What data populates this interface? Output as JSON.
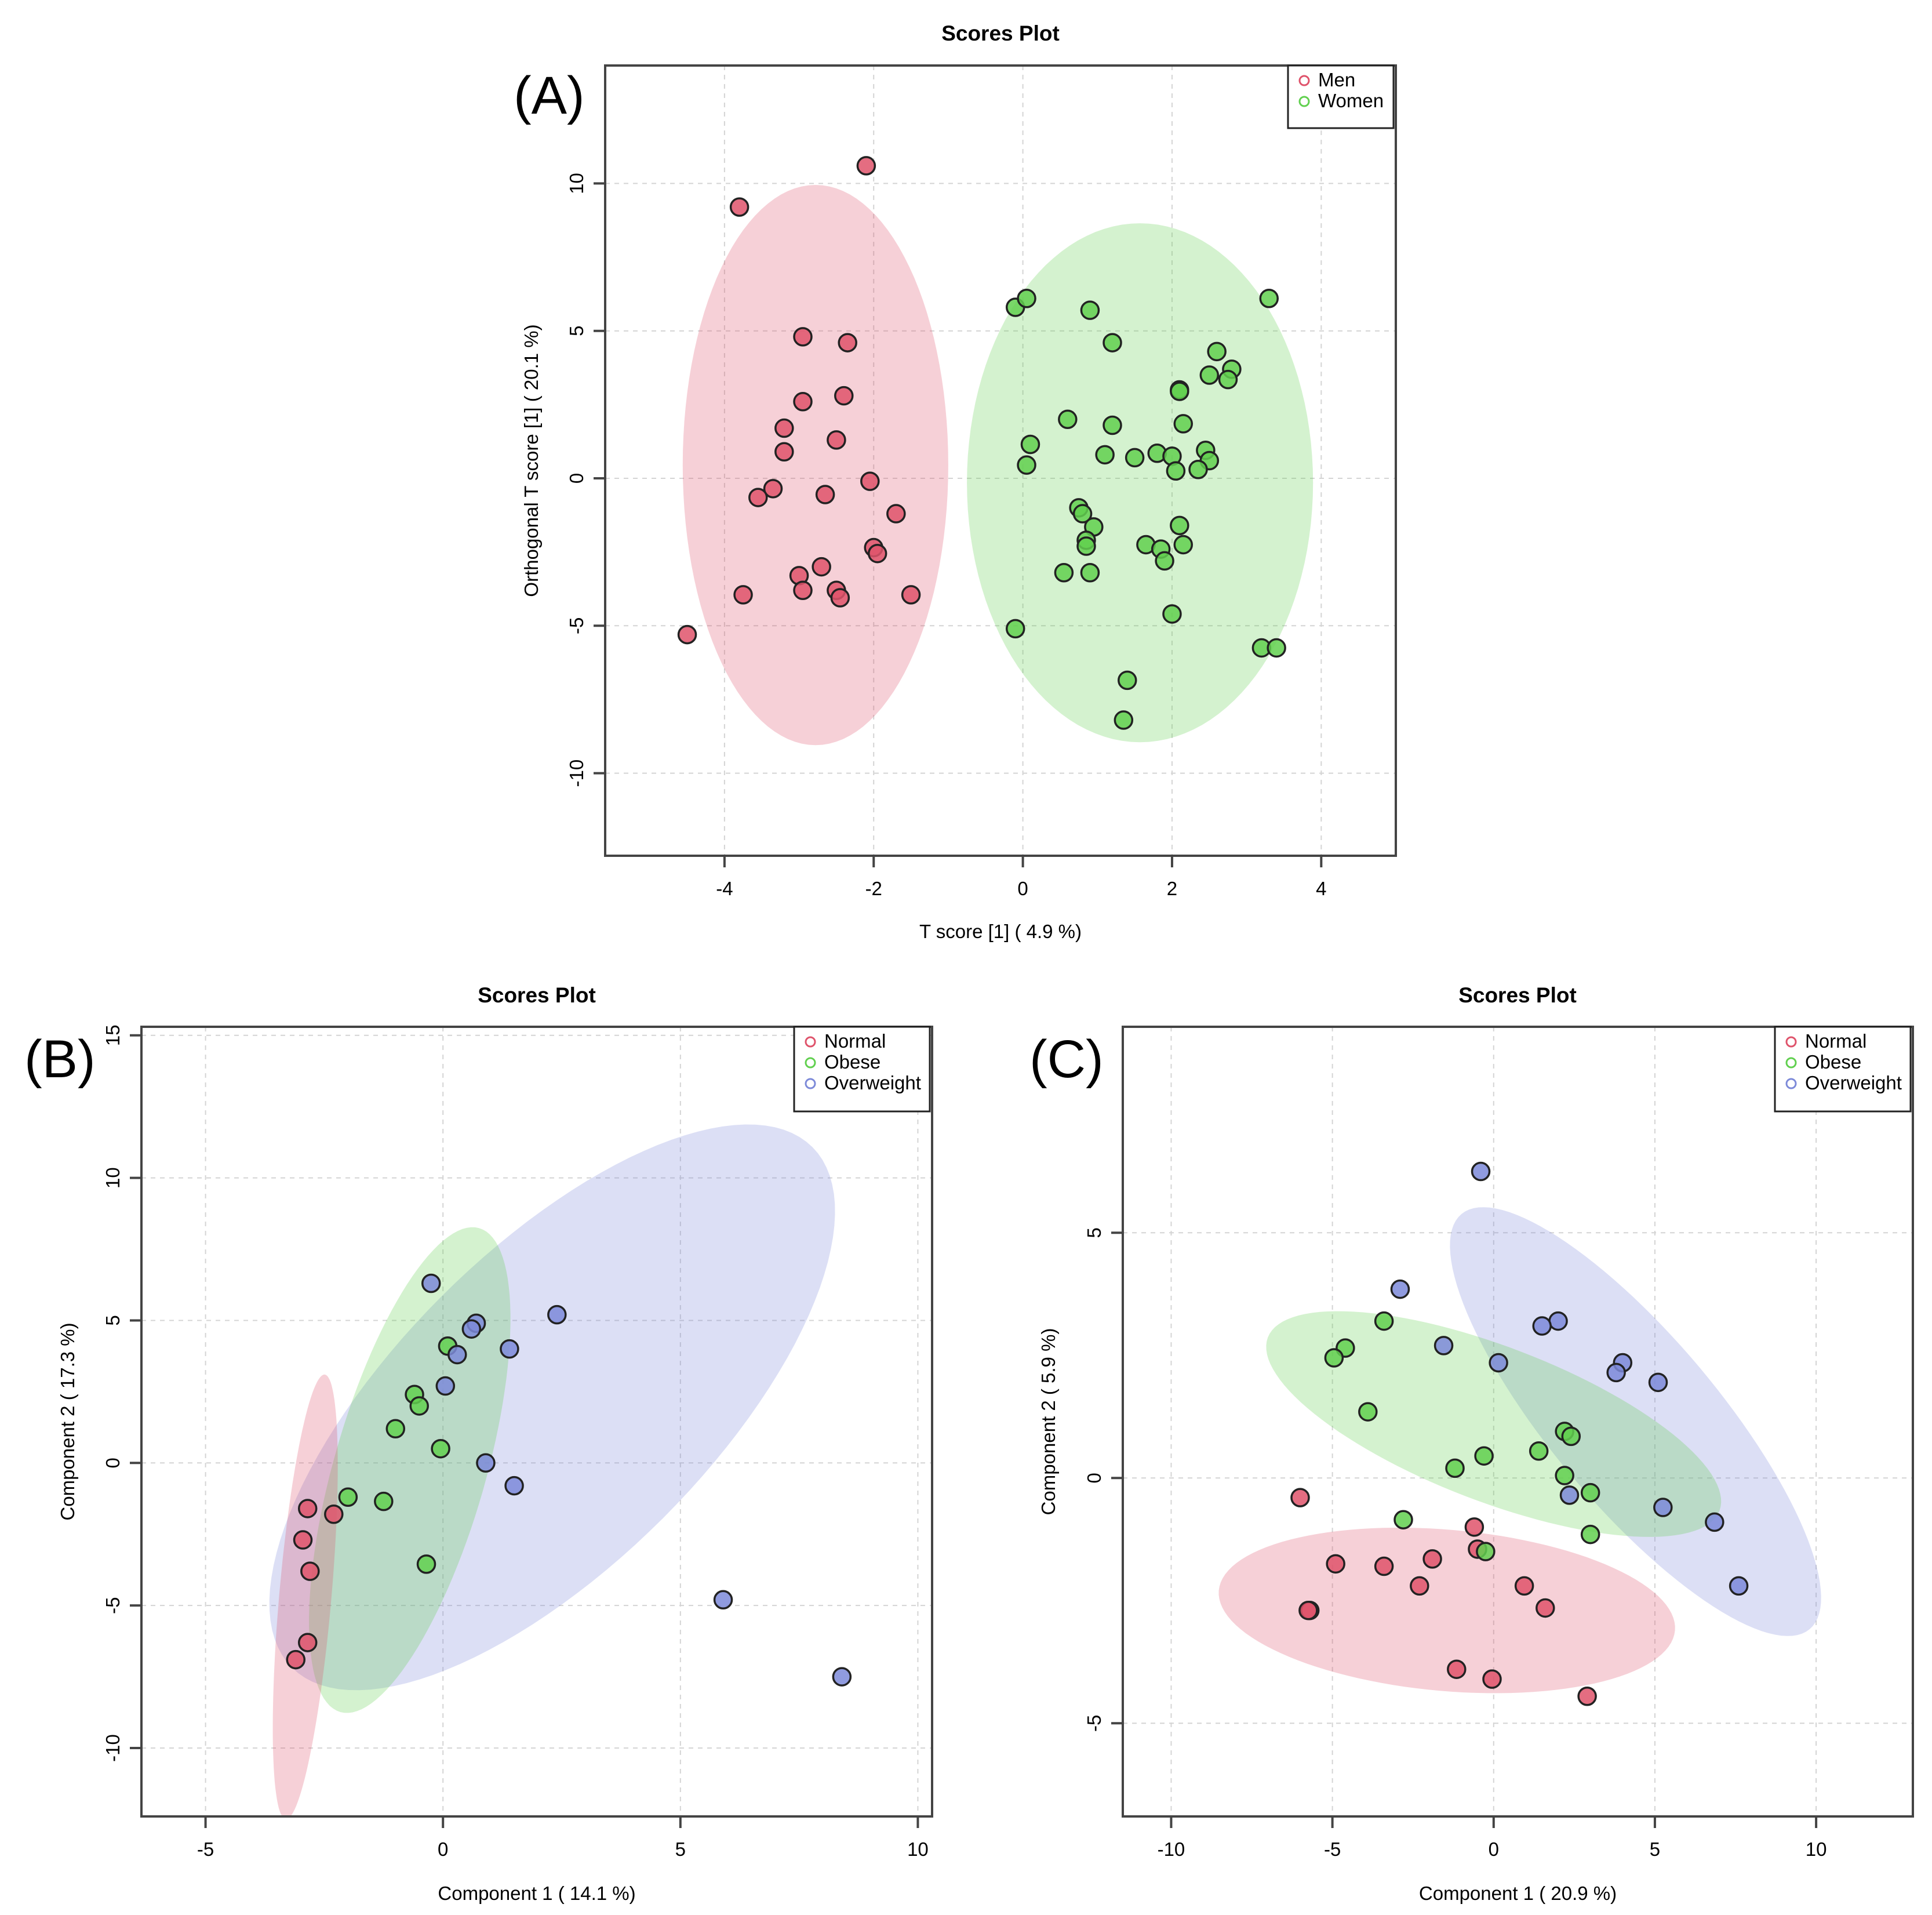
{
  "colors": {
    "Men": "#df536b",
    "Women": "#61d04f",
    "Normal": "#df536b",
    "Obese": "#61d04f",
    "Overweight": "#7d8ad9"
  },
  "chart_data": [
    {
      "id": "A",
      "panel_label": "(A)",
      "type": "scatter",
      "title": "Scores Plot",
      "xlabel": "T score [1] ( 4.9 %)",
      "ylabel": "Orthogonal T score [1] ( 20.1 %)",
      "xlim": [
        -5.6,
        5.0
      ],
      "ylim": [
        -12.8,
        14.0
      ],
      "xticks": [
        -4,
        -2,
        0,
        2,
        4
      ],
      "yticks": [
        -10,
        -5,
        0,
        5,
        10
      ],
      "legend": {
        "position": "top-right",
        "entries": [
          "Men",
          "Women"
        ]
      },
      "ellipses": [
        {
          "series": "Men",
          "cx": -2.78,
          "cy": 0.45,
          "rx": 1.78,
          "ry": 9.5,
          "angle": 0
        },
        {
          "series": "Women",
          "cx": 1.57,
          "cy": -0.15,
          "rx": 2.32,
          "ry": 8.8,
          "angle": 0
        }
      ],
      "series": [
        {
          "name": "Men",
          "points": [
            [
              -2.1,
              10.6
            ],
            [
              -3.8,
              9.2
            ],
            [
              -2.95,
              4.8
            ],
            [
              -2.35,
              4.6
            ],
            [
              -2.4,
              2.8
            ],
            [
              -2.95,
              2.6
            ],
            [
              -3.2,
              1.7
            ],
            [
              -2.5,
              1.3
            ],
            [
              -3.2,
              0.9
            ],
            [
              -2.05,
              -0.1
            ],
            [
              -3.35,
              -0.35
            ],
            [
              -3.55,
              -0.65
            ],
            [
              -2.65,
              -0.55
            ],
            [
              -1.7,
              -1.2
            ],
            [
              -2.0,
              -2.35
            ],
            [
              -1.95,
              -2.55
            ],
            [
              -2.7,
              -3.0
            ],
            [
              -3.0,
              -3.3
            ],
            [
              -2.5,
              -3.8
            ],
            [
              -2.95,
              -3.8
            ],
            [
              -3.75,
              -3.95
            ],
            [
              -2.45,
              -4.05
            ],
            [
              -1.5,
              -3.95
            ],
            [
              -4.5,
              -5.3
            ]
          ]
        },
        {
          "name": "Women",
          "points": [
            [
              -0.1,
              5.8
            ],
            [
              0.05,
              6.1
            ],
            [
              0.9,
              5.7
            ],
            [
              3.3,
              6.1
            ],
            [
              1.2,
              4.6
            ],
            [
              2.6,
              4.3
            ],
            [
              2.8,
              3.7
            ],
            [
              2.5,
              3.5
            ],
            [
              2.75,
              3.35
            ],
            [
              2.1,
              3.0
            ],
            [
              2.1,
              2.95
            ],
            [
              0.6,
              2.0
            ],
            [
              1.2,
              1.8
            ],
            [
              2.15,
              1.85
            ],
            [
              0.1,
              1.15
            ],
            [
              1.1,
              0.8
            ],
            [
              1.5,
              0.7
            ],
            [
              1.8,
              0.85
            ],
            [
              2.0,
              0.75
            ],
            [
              2.45,
              0.95
            ],
            [
              2.5,
              0.6
            ],
            [
              2.35,
              0.3
            ],
            [
              2.05,
              0.25
            ],
            [
              0.05,
              0.45
            ],
            [
              0.75,
              -1.0
            ],
            [
              0.8,
              -1.2
            ],
            [
              0.95,
              -1.65
            ],
            [
              2.1,
              -1.6
            ],
            [
              0.85,
              -2.1
            ],
            [
              0.85,
              -2.3
            ],
            [
              1.65,
              -2.25
            ],
            [
              2.15,
              -2.25
            ],
            [
              1.85,
              -2.4
            ],
            [
              1.9,
              -2.8
            ],
            [
              0.55,
              -3.2
            ],
            [
              0.9,
              -3.2
            ],
            [
              2.0,
              -4.6
            ],
            [
              -0.1,
              -5.1
            ],
            [
              3.2,
              -5.75
            ],
            [
              3.4,
              -5.75
            ],
            [
              1.4,
              -6.85
            ],
            [
              1.35,
              -8.2
            ]
          ]
        }
      ]
    },
    {
      "id": "B",
      "panel_label": "(B)",
      "type": "scatter",
      "title": "Scores Plot",
      "xlabel": "Component 1 ( 14.1 %)",
      "ylabel": "Component 2 ( 17.3 %)",
      "xlim": [
        -6.35,
        10.3
      ],
      "ylim": [
        -12.4,
        15.3
      ],
      "xticks": [
        -5,
        0,
        5,
        10
      ],
      "yticks": [
        -10,
        -5,
        0,
        5,
        10,
        15
      ],
      "legend": {
        "position": "top-right",
        "entries": [
          "Normal",
          "Obese",
          "Overweight"
        ]
      },
      "ellipses": [
        {
          "series": "Overweight",
          "cx": 2.3,
          "cy": 1.95,
          "rx": 7.75,
          "ry": 3.3,
          "angle": 45
        },
        {
          "series": "Obese",
          "cx": -0.7,
          "cy": -0.25,
          "rx": 5.3,
          "ry": 1.6,
          "angle": 74
        },
        {
          "series": "Normal",
          "cx": -2.9,
          "cy": -4.7,
          "rx": 4.7,
          "ry": 0.55,
          "angle": 85
        }
      ],
      "series": [
        {
          "name": "Normal",
          "points": [
            [
              -2.85,
              -1.6
            ],
            [
              -2.3,
              -1.8
            ],
            [
              -2.95,
              -2.7
            ],
            [
              -2.8,
              -3.8
            ],
            [
              -2.85,
              -6.3
            ],
            [
              -3.1,
              -6.9
            ]
          ]
        },
        {
          "name": "Obese",
          "points": [
            [
              0.1,
              4.1
            ],
            [
              -0.6,
              2.4
            ],
            [
              -0.5,
              2.0
            ],
            [
              -1.0,
              1.2
            ],
            [
              -0.05,
              0.5
            ],
            [
              -2.0,
              -1.2
            ],
            [
              -1.25,
              -1.35
            ],
            [
              -0.35,
              -3.55
            ]
          ]
        },
        {
          "name": "Overweight",
          "points": [
            [
              -0.25,
              6.3
            ],
            [
              2.4,
              5.2
            ],
            [
              0.7,
              4.9
            ],
            [
              0.6,
              4.7
            ],
            [
              1.4,
              4.0
            ],
            [
              0.3,
              3.8
            ],
            [
              0.05,
              2.7
            ],
            [
              0.9,
              0.0
            ],
            [
              1.5,
              -0.8
            ],
            [
              5.9,
              -4.8
            ],
            [
              8.4,
              -7.5
            ]
          ]
        }
      ]
    },
    {
      "id": "C",
      "panel_label": "(C)",
      "type": "scatter",
      "title": "Scores Plot",
      "xlabel": "Component 1 ( 20.9 %)",
      "ylabel": "Component 2 ( 5.9 %)",
      "xlim": [
        -11.5,
        13.0
      ],
      "ylim": [
        -6.9,
        9.2
      ],
      "xticks": [
        -10,
        -5,
        0,
        5,
        10
      ],
      "yticks": [
        -5,
        0,
        5
      ],
      "legend": {
        "position": "top-right",
        "entries": [
          "Normal",
          "Obese",
          "Overweight"
        ]
      },
      "ellipses": [
        {
          "series": "Overweight",
          "cx": 4.4,
          "cy": 1.15,
          "rx": 8.4,
          "ry": 2.6,
          "angle": -50
        },
        {
          "series": "Obese",
          "cx": 0.0,
          "cy": 1.1,
          "rx": 7.5,
          "ry": 2.4,
          "angle": -21
        },
        {
          "series": "Normal",
          "cx": -1.45,
          "cy": -2.7,
          "rx": 7.1,
          "ry": 2.5,
          "angle": -5
        }
      ],
      "series": [
        {
          "name": "Normal",
          "points": [
            [
              -6.0,
              -0.4
            ],
            [
              -0.6,
              -1.0
            ],
            [
              -0.5,
              -1.45
            ],
            [
              -4.9,
              -1.75
            ],
            [
              -3.4,
              -1.8
            ],
            [
              -1.9,
              -1.65
            ],
            [
              -2.3,
              -2.2
            ],
            [
              0.95,
              -2.2
            ],
            [
              1.6,
              -2.65
            ],
            [
              -5.7,
              -2.7
            ],
            [
              -5.75,
              -2.7
            ],
            [
              -1.15,
              -3.9
            ],
            [
              -0.05,
              -4.1
            ],
            [
              2.9,
              -4.45
            ]
          ]
        },
        {
          "name": "Obese",
          "points": [
            [
              -3.4,
              3.2
            ],
            [
              -4.6,
              2.65
            ],
            [
              -4.95,
              2.45
            ],
            [
              -3.9,
              1.35
            ],
            [
              2.2,
              0.95
            ],
            [
              2.4,
              0.85
            ],
            [
              1.4,
              0.55
            ],
            [
              -0.3,
              0.45
            ],
            [
              -1.2,
              0.2
            ],
            [
              2.2,
              0.05
            ],
            [
              3.0,
              -0.3
            ],
            [
              -2.8,
              -0.85
            ],
            [
              -0.25,
              -1.5
            ],
            [
              3.0,
              -1.15
            ]
          ]
        },
        {
          "name": "Overweight",
          "points": [
            [
              -0.4,
              6.25
            ],
            [
              -2.9,
              3.85
            ],
            [
              2.0,
              3.2
            ],
            [
              1.5,
              3.1
            ],
            [
              -1.55,
              2.7
            ],
            [
              0.15,
              2.35
            ],
            [
              4.0,
              2.35
            ],
            [
              3.8,
              2.15
            ],
            [
              5.1,
              1.95
            ],
            [
              2.35,
              -0.35
            ],
            [
              5.25,
              -0.6
            ],
            [
              6.85,
              -0.9
            ],
            [
              7.6,
              -2.2
            ]
          ]
        }
      ]
    }
  ]
}
